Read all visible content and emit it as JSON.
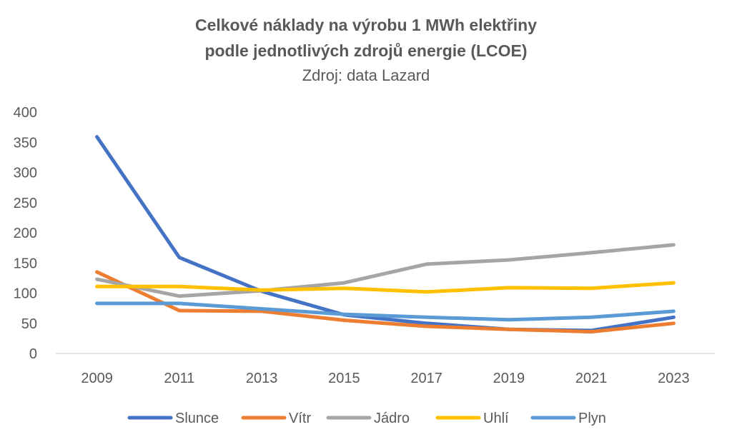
{
  "chart_data": {
    "type": "line",
    "title": "Celkové náklady na výrobu 1 MWh elektřiny",
    "title_line2": "podle jednotlivých zdrojů energie (LCOE)",
    "subtitle": "Zdroj: data Lazard",
    "xlabel": "",
    "ylabel": "",
    "categories": [
      "2009",
      "2011",
      "2013",
      "2015",
      "2017",
      "2019",
      "2021",
      "2023"
    ],
    "ylim": [
      0,
      400
    ],
    "yticks": [
      0,
      50,
      100,
      150,
      200,
      250,
      300,
      350,
      400
    ],
    "grid": false,
    "legend_position": "bottom",
    "series": [
      {
        "name": "Slunce",
        "color": "#4472C4",
        "values": [
          359,
          159,
          103,
          64,
          50,
          40,
          38,
          60
        ]
      },
      {
        "name": "Vítr",
        "color": "#ED7D31",
        "values": [
          135,
          71,
          70,
          55,
          45,
          40,
          36,
          50
        ]
      },
      {
        "name": "Jádro",
        "color": "#A5A5A5",
        "values": [
          123,
          95,
          104,
          117,
          148,
          155,
          167,
          180
        ]
      },
      {
        "name": "Uhlí",
        "color": "#FFC000",
        "values": [
          111,
          111,
          105,
          108,
          102,
          109,
          108,
          117
        ]
      },
      {
        "name": "Plyn",
        "color": "#5B9BD5",
        "values": [
          83,
          83,
          74,
          65,
          60,
          56,
          60,
          70
        ]
      }
    ]
  }
}
